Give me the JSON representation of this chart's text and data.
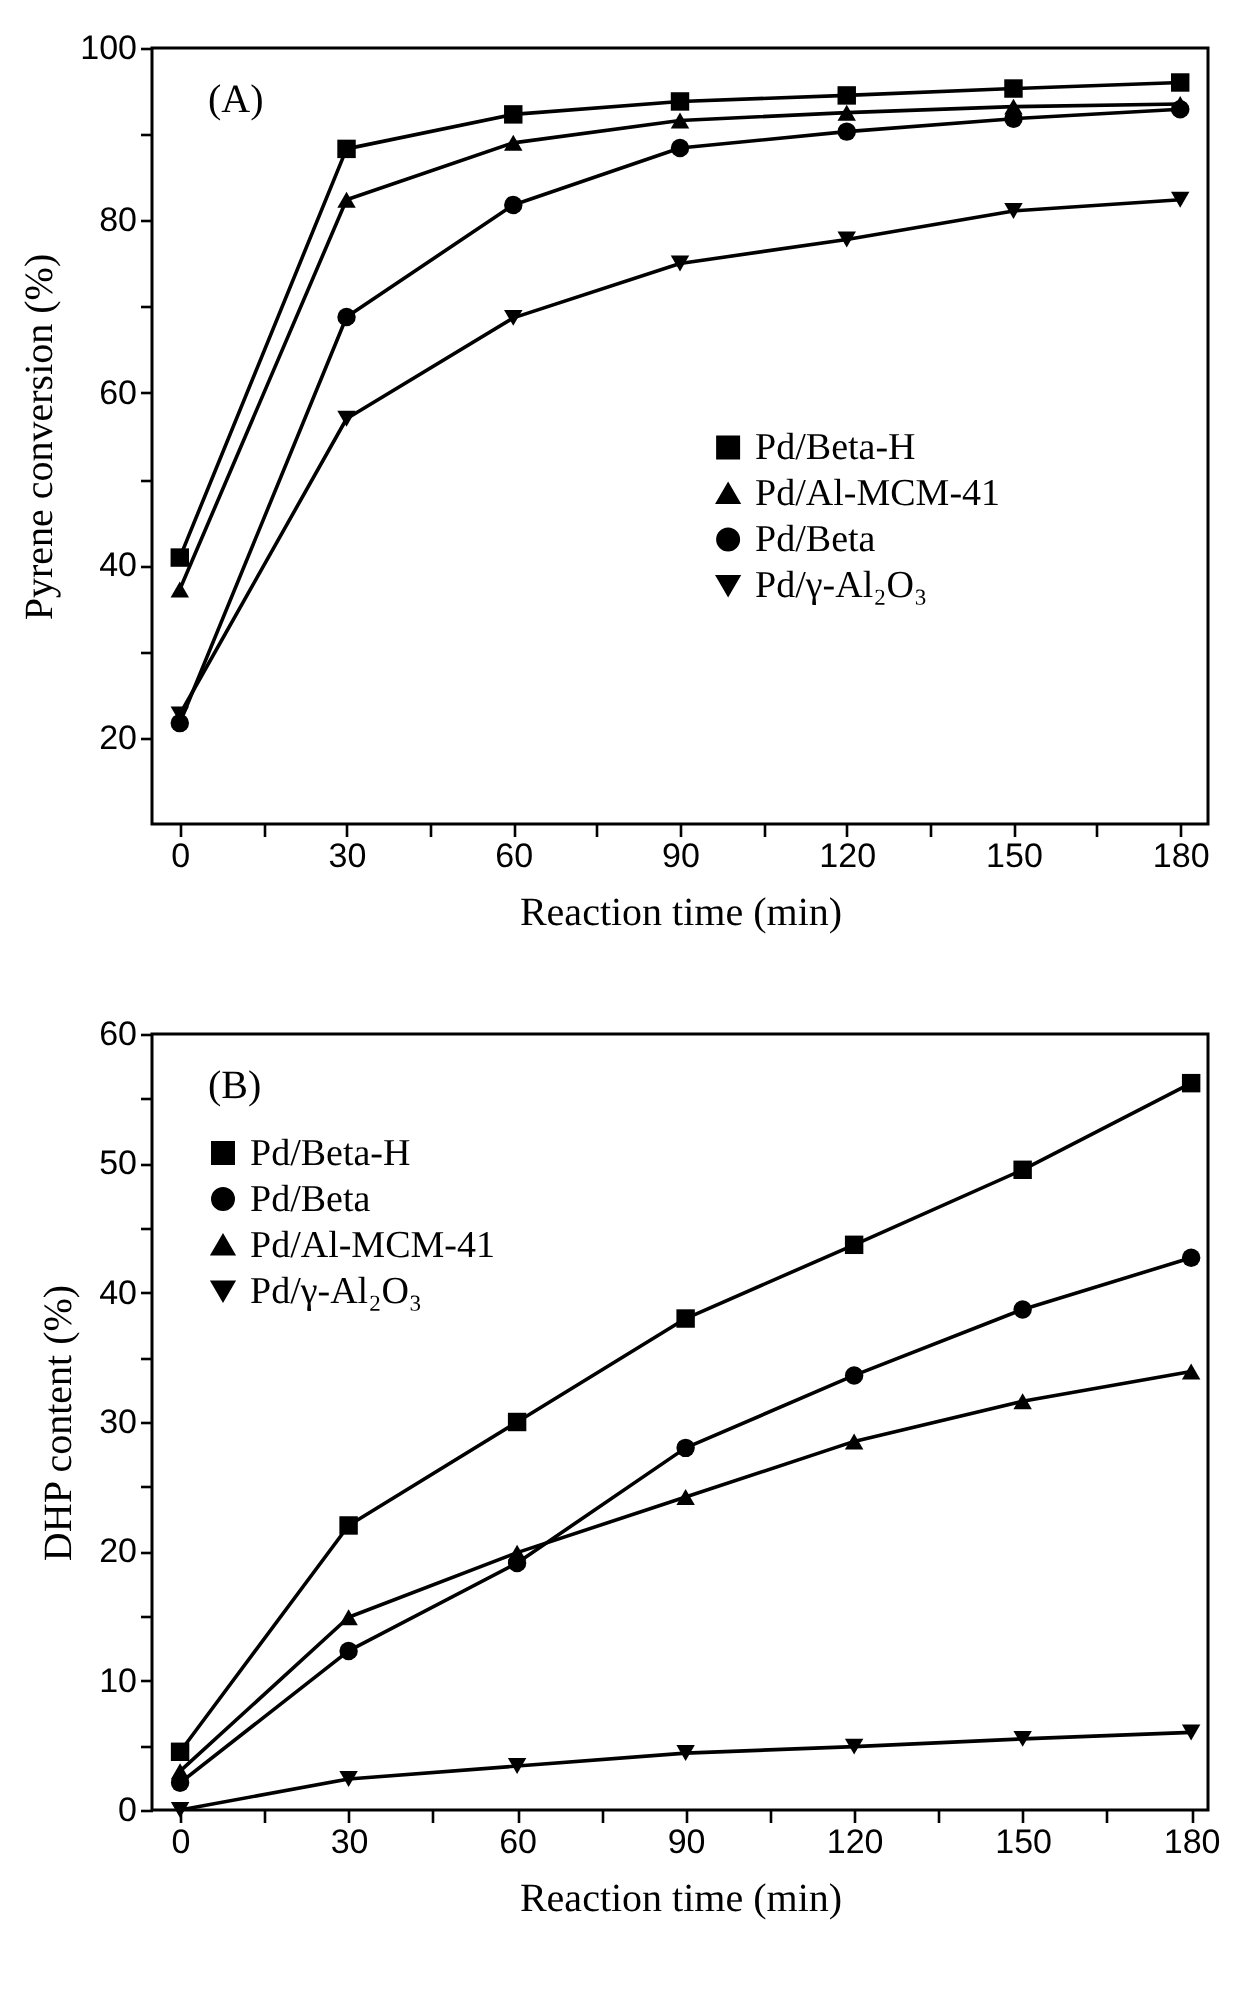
{
  "chart_data": [
    {
      "type": "line",
      "xlabel": "Reaction time (min)",
      "ylabel": "Pyrene conversion (%)",
      "annotations": [
        "(A)"
      ],
      "x": [
        0,
        30,
        60,
        90,
        120,
        150,
        180
      ],
      "xlim": [
        -5,
        185
      ],
      "xticks": [
        0,
        {
          "value": 15,
          "label": null
        },
        30,
        {
          "value": 45,
          "label": null
        },
        60,
        {
          "value": 75,
          "label": null
        },
        90,
        {
          "value": 105,
          "label": null
        },
        120,
        {
          "value": 135,
          "label": null
        },
        150,
        {
          "value": 165,
          "label": null
        },
        180
      ],
      "ylim": [
        10,
        100
      ],
      "yticks": [
        20,
        {
          "value": 30,
          "label": null
        },
        40,
        {
          "value": 50,
          "label": null
        },
        60,
        {
          "value": 70,
          "label": null
        },
        80,
        {
          "value": 90,
          "label": null
        },
        100
      ],
      "grid": false,
      "legend": "center right",
      "line_style": "solid",
      "series": [
        {
          "name": "Pd/Beta-H",
          "color": "#000000",
          "marker": "square",
          "values": [
            40.9,
            88.3,
            92.3,
            93.8,
            94.5,
            95.3,
            96.0
          ]
        },
        {
          "name": "Pd/Al-MCM-41",
          "color": "#000000",
          "marker": "triangle",
          "values": [
            37.2,
            82.4,
            89.0,
            91.6,
            92.5,
            93.2,
            93.5
          ]
        },
        {
          "name": "Pd/Beta",
          "color": "#000000",
          "marker": "circle",
          "values": [
            21.7,
            68.8,
            81.8,
            88.4,
            90.3,
            91.8,
            92.9
          ]
        },
        {
          "name": "Pd/γ-Al₂O₃",
          "color": "#000000",
          "marker": "triangle-down",
          "values": [
            22.7,
            57.0,
            68.7,
            75.0,
            77.8,
            81.1,
            82.4
          ]
        }
      ]
    },
    {
      "type": "line",
      "xlabel": "Reaction time (min)",
      "ylabel": "DHP content (%)",
      "annotations": [
        "(B)"
      ],
      "x": [
        0,
        30,
        60,
        90,
        120,
        150,
        180
      ],
      "xlim": [
        -5,
        183
      ],
      "xticks": [
        0,
        {
          "value": 15,
          "label": null
        },
        30,
        {
          "value": 45,
          "label": null
        },
        60,
        {
          "value": 75,
          "label": null
        },
        90,
        {
          "value": 105,
          "label": null
        },
        120,
        {
          "value": 135,
          "label": null
        },
        150,
        {
          "value": 165,
          "label": null
        },
        180
      ],
      "ylim": [
        0,
        60
      ],
      "yticks": [
        0,
        {
          "value": 5,
          "label": null
        },
        10,
        {
          "value": 15,
          "label": null
        },
        20,
        {
          "value": 25,
          "label": null
        },
        30,
        {
          "value": 35,
          "label": null
        },
        40,
        {
          "value": 45,
          "label": null
        },
        50,
        {
          "value": 55,
          "label": null
        },
        60
      ],
      "grid": false,
      "legend": "top left",
      "line_style": "solid",
      "series": [
        {
          "name": "Pd/Beta-H",
          "color": "#000000",
          "marker": "square",
          "values": [
            4.5,
            22.0,
            30.0,
            38.0,
            43.7,
            49.5,
            56.2
          ]
        },
        {
          "name": "Pd/Beta",
          "color": "#000000",
          "marker": "circle",
          "values": [
            2.1,
            12.3,
            19.1,
            28.0,
            33.6,
            38.7,
            42.7
          ]
        },
        {
          "name": "Pd/Al-MCM-41",
          "color": "#000000",
          "marker": "triangle",
          "values": [
            3.0,
            14.9,
            19.9,
            24.2,
            28.5,
            31.6,
            33.9
          ]
        },
        {
          "name": "Pd/γ-Al₂O₃",
          "color": "#000000",
          "marker": "triangle-down",
          "values": [
            0.0,
            2.4,
            3.4,
            4.4,
            4.9,
            5.5,
            6.0
          ]
        }
      ]
    }
  ]
}
